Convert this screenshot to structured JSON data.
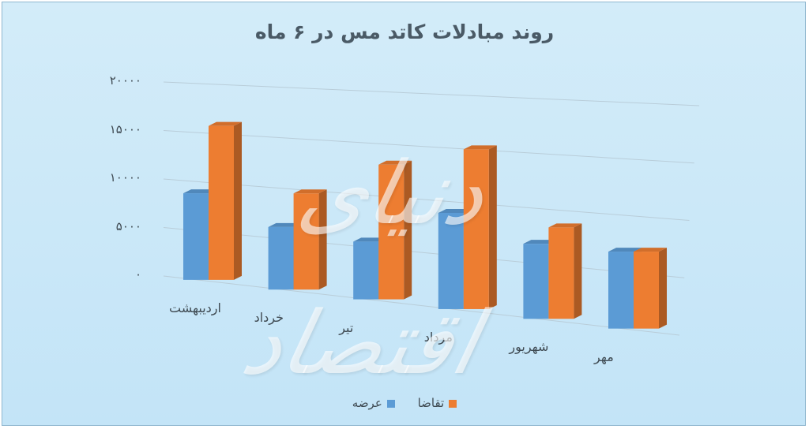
{
  "chart_data": {
    "type": "bar",
    "title": "روند مبادلات کاتد مس در ۶ ماه",
    "categories": [
      "اردیبهشت",
      "خرداد",
      "تیر",
      "مرداد",
      "شهریور",
      "مهر"
    ],
    "series": [
      {
        "name": "عرضه",
        "color": "#5b9bd5",
        "values": [
          9000,
          6500,
          6000,
          10000,
          7800,
          8000
        ]
      },
      {
        "name": "تقاضا",
        "color": "#ed7d31",
        "values": [
          16000,
          10000,
          14000,
          16600,
          9500,
          8000
        ]
      }
    ],
    "yticks": [
      "۰",
      "۵۰۰۰",
      "۱۰۰۰۰",
      "۱۵۰۰۰",
      "۲۰۰۰۰"
    ],
    "ylim": [
      0,
      20000
    ],
    "grid": true,
    "legend_position": "bottom"
  },
  "watermark": "دنیای اقتصاد"
}
